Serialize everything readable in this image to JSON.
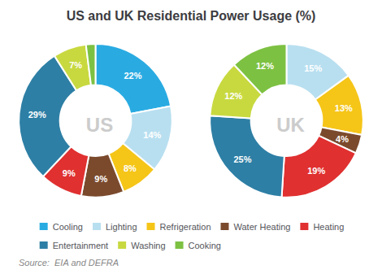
{
  "chart_data": [
    {
      "type": "pie",
      "title": "US and UK Residential Power Usage (%)",
      "center_label": "US",
      "categories": [
        "Cooling",
        "Lighting",
        "Refrigeration",
        "Water Heating",
        "Heating",
        "Entertainment",
        "Washing",
        "Cooking"
      ],
      "values": [
        22,
        14,
        8,
        9,
        9,
        29,
        7,
        2
      ],
      "value_labels": [
        "22%",
        "14%",
        "8%",
        "9%",
        "9%",
        "29%",
        "7%",
        null
      ],
      "colors": [
        "#29abe2",
        "#b8dff0",
        "#f5c518",
        "#7b4a2d",
        "#e03030",
        "#2e7fa5",
        "#c8d940",
        "#7dc142"
      ],
      "data_labels": true,
      "legend": "bottom",
      "source": "Source:  EIA and DEFRA"
    },
    {
      "type": "pie",
      "center_label": "UK",
      "categories": [
        "Lighting",
        "Refrigeration",
        "Water Heating",
        "Heating",
        "Entertainment",
        "Washing",
        "Cooking"
      ],
      "values": [
        15,
        13,
        4,
        19,
        25,
        12,
        12
      ],
      "value_labels": [
        "15%",
        "13%",
        "4%",
        "19%",
        "25%",
        "12%",
        "12%"
      ],
      "colors": [
        "#b8dff0",
        "#f5c518",
        "#7b4a2d",
        "#e03030",
        "#2e7fa5",
        "#c8d940",
        "#7dc142"
      ],
      "data_labels": true
    }
  ]
}
